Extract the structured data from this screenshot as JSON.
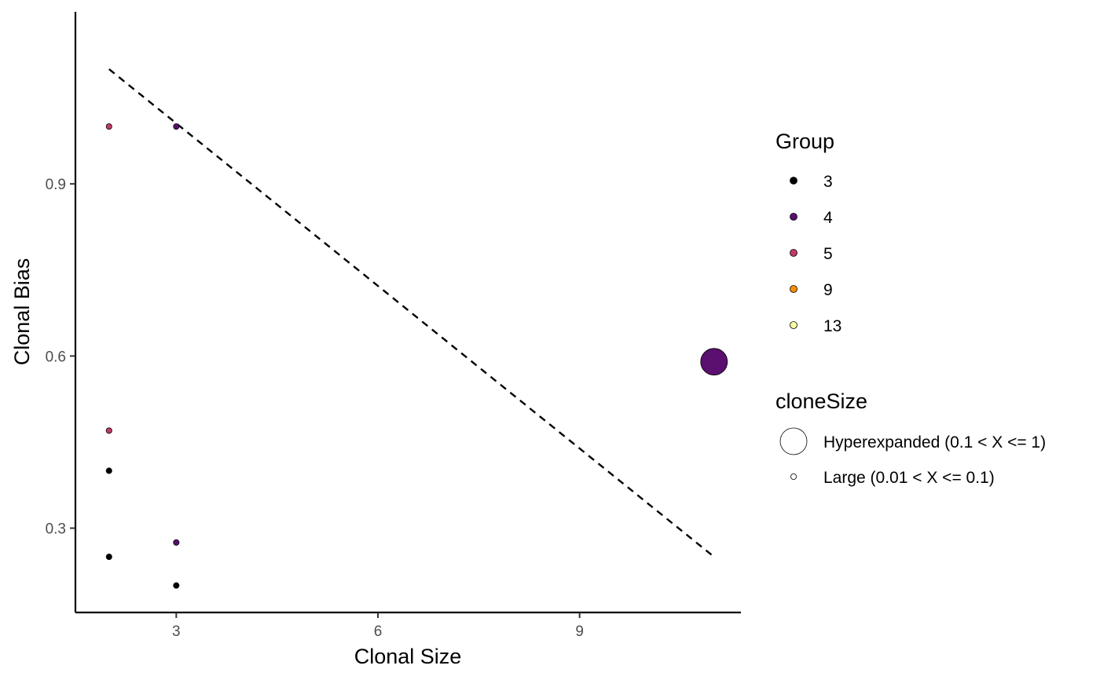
{
  "chart_data": {
    "type": "scatter",
    "title": "",
    "xlabel": "Clonal Size",
    "ylabel": "Clonal Bias",
    "xlim": [
      1.5,
      11.4
    ],
    "ylim": [
      0.153,
      1.2
    ],
    "x_ticks": [
      3,
      6,
      9
    ],
    "x_tick_labels": [
      "3",
      "6",
      "9"
    ],
    "y_ticks": [
      0.3,
      0.6,
      0.9
    ],
    "y_tick_labels": [
      "0.3",
      "0.6",
      "0.9"
    ],
    "grid": false,
    "legend_position": "right",
    "points": [
      {
        "x": 2,
        "y": 1.0,
        "group": "5",
        "cloneSize": "Large (0.01 < X <= 0.1)"
      },
      {
        "x": 3,
        "y": 1.0,
        "group": "4",
        "cloneSize": "Large (0.01 < X <= 0.1)"
      },
      {
        "x": 2,
        "y": 0.47,
        "group": "5",
        "cloneSize": "Large (0.01 < X <= 0.1)"
      },
      {
        "x": 2,
        "y": 0.4,
        "group": "3",
        "cloneSize": "Large (0.01 < X <= 0.1)"
      },
      {
        "x": 2,
        "y": 0.25,
        "group": "3",
        "cloneSize": "Large (0.01 < X <= 0.1)"
      },
      {
        "x": 3,
        "y": 0.275,
        "group": "4",
        "cloneSize": "Large (0.01 < X <= 0.1)"
      },
      {
        "x": 3,
        "y": 0.2,
        "group": "3",
        "cloneSize": "Large (0.01 < X <= 0.1)"
      },
      {
        "x": 11,
        "y": 0.59,
        "group": "4",
        "cloneSize": "Hyperexpanded (0.1 < X <= 1)"
      }
    ],
    "reference_line": {
      "style": "dashed",
      "x": [
        2,
        11
      ],
      "y": [
        1.1,
        0.25
      ]
    },
    "legends": {
      "group": {
        "title": "Group",
        "entries": [
          {
            "label": "3",
            "color": "#000004"
          },
          {
            "label": "4",
            "color": "#5b0f6e"
          },
          {
            "label": "5",
            "color": "#c13a6a"
          },
          {
            "label": "9",
            "color": "#f98e09"
          },
          {
            "label": "13",
            "color": "#fcffa4"
          }
        ]
      },
      "cloneSize": {
        "title": "cloneSize",
        "entries": [
          {
            "label": "Hyperexpanded (0.1 < X <= 1)",
            "size": "large"
          },
          {
            "label": "Large (0.01 < X <= 0.1)",
            "size": "small"
          }
        ]
      }
    }
  }
}
